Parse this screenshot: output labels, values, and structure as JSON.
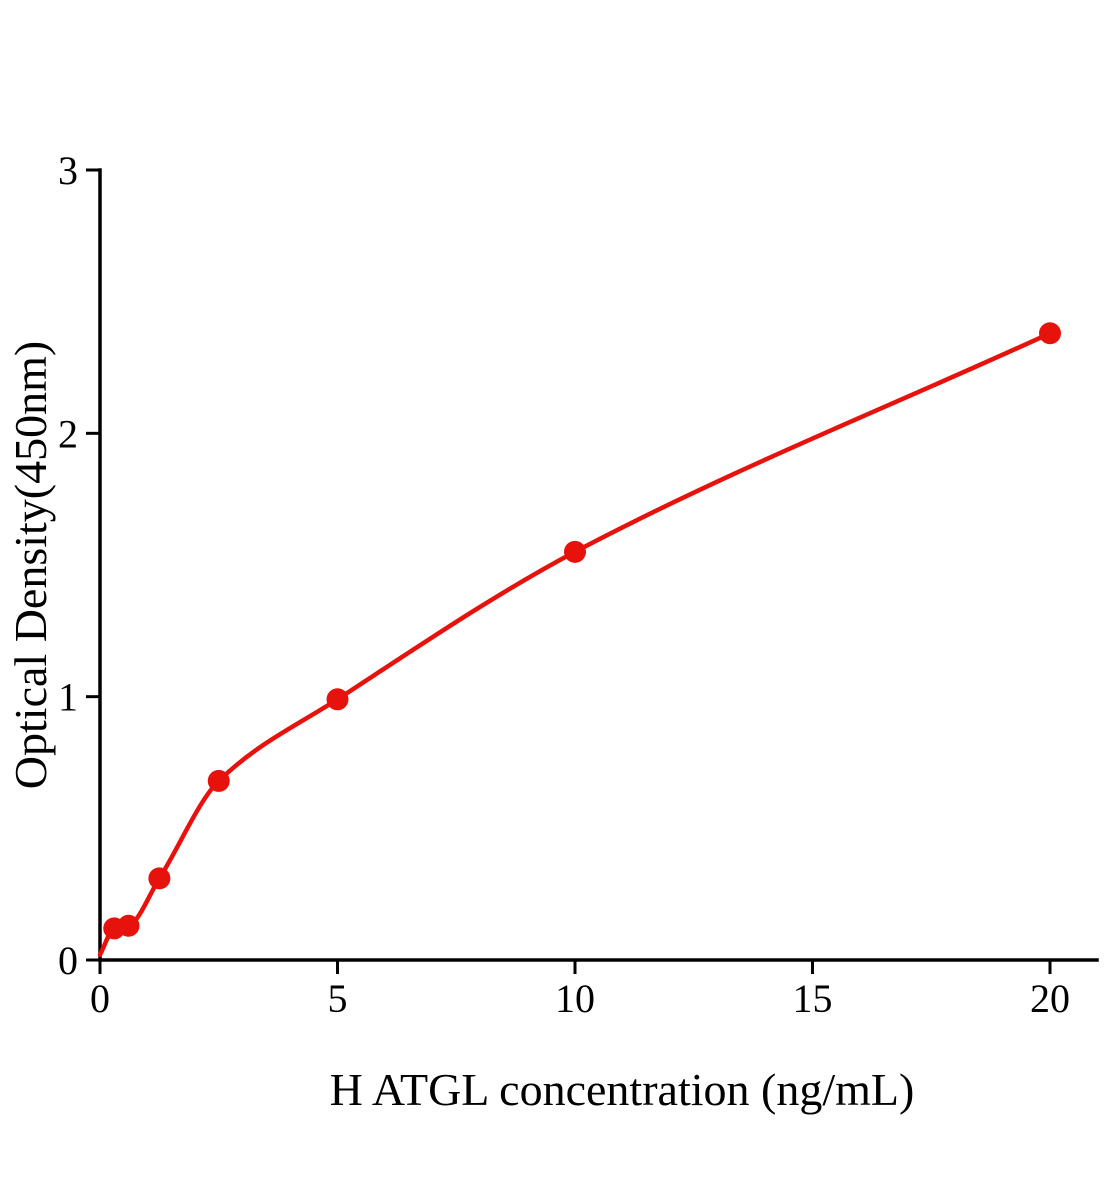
{
  "chart_data": {
    "type": "scatter",
    "title": "",
    "xlabel": "H ATGL concentration (ng/mL)",
    "ylabel": "Optical Density(450nm)",
    "x": [
      0.3,
      0.6,
      1.25,
      2.5,
      5,
      10,
      20
    ],
    "y": [
      0.12,
      0.13,
      0.31,
      0.68,
      0.99,
      1.55,
      2.38
    ],
    "curve_start": {
      "x": 0,
      "y": 0.02
    },
    "xlim": [
      0,
      21
    ],
    "ylim": [
      0,
      3
    ],
    "x_ticks": [
      0,
      5,
      10,
      15,
      20
    ],
    "y_ticks": [
      0,
      1,
      2,
      3
    ],
    "grid": false,
    "legend_position": "none",
    "point_color": "#e8120c",
    "line_color": "#e8120c",
    "axis_color": "#000000",
    "background_color": "#ffffff"
  }
}
